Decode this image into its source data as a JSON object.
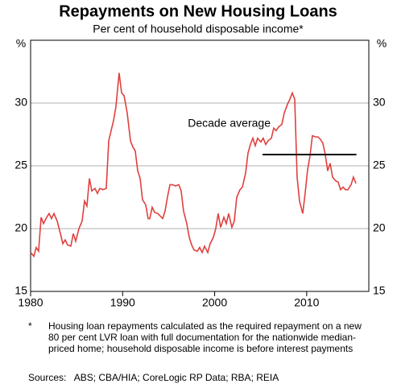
{
  "chart_data": {
    "type": "line",
    "title": "Repayments on New Housing Loans",
    "subtitle": "Per cent of household disposable income*",
    "ylabel": "%",
    "y2label": "%",
    "xlim": [
      1980,
      2016.75
    ],
    "xticks": [
      1980,
      1990,
      2000,
      2010
    ],
    "ylim": [
      15,
      35
    ],
    "yticks": [
      15,
      20,
      25,
      30
    ],
    "y2lim": [
      15,
      35
    ],
    "y2ticks": [
      15,
      20,
      25,
      30
    ],
    "grid": true,
    "series": [
      {
        "name": "Repayments",
        "color": "#e0403f",
        "x": [
          1980.0,
          1980.35,
          1980.61,
          1980.87,
          1981.14,
          1981.4,
          1981.75,
          1982.01,
          1982.27,
          1982.54,
          1982.89,
          1983.24,
          1983.5,
          1983.76,
          1984.02,
          1984.37,
          1984.64,
          1984.9,
          1985.25,
          1985.6,
          1985.86,
          1986.12,
          1986.39,
          1986.65,
          1987.0,
          1987.26,
          1987.52,
          1987.87,
          1988.22,
          1988.49,
          1988.75,
          1989.01,
          1989.27,
          1989.62,
          1989.89,
          1990.15,
          1990.5,
          1990.85,
          1991.11,
          1991.37,
          1991.64,
          1991.9,
          1992.16,
          1992.51,
          1992.77,
          1992.95,
          1993.21,
          1993.47,
          1993.82,
          1994.09,
          1994.35,
          1994.61,
          1994.87,
          1995.14,
          1995.4,
          1995.75,
          1996.1,
          1996.36,
          1996.62,
          1996.97,
          1997.24,
          1997.5,
          1997.76,
          1998.11,
          1998.37,
          1998.64,
          1998.9,
          1999.25,
          1999.51,
          1999.86,
          2000.12,
          2000.38,
          2000.65,
          2001.0,
          2001.26,
          2001.52,
          2001.87,
          2002.13,
          2002.4,
          2002.75,
          2003.01,
          2003.36,
          2003.62,
          2003.88,
          2004.15,
          2004.41,
          2004.67,
          2005.02,
          2005.28,
          2005.55,
          2005.81,
          2006.16,
          2006.42,
          2006.68,
          2006.95,
          2007.3,
          2007.56,
          2007.91,
          2008.17,
          2008.44,
          2008.7,
          2008.96,
          2009.22,
          2009.57,
          2009.83,
          2010.1,
          2010.36,
          2010.62,
          2010.97,
          2011.23,
          2011.5,
          2011.76,
          2012.02,
          2012.28,
          2012.55,
          2012.81,
          2013.16,
          2013.42,
          2013.68,
          2013.95,
          2014.21,
          2014.47,
          2014.82,
          2015.08,
          2015.35
        ],
        "values": [
          18.1,
          17.8,
          18.5,
          18.2,
          20.9,
          20.4,
          20.9,
          21.2,
          20.8,
          21.2,
          20.6,
          19.6,
          18.8,
          19.1,
          18.7,
          18.6,
          19.6,
          19.0,
          20.0,
          20.6,
          22.2,
          21.8,
          24.0,
          23.0,
          23.2,
          22.8,
          23.2,
          23.1,
          23.2,
          27.0,
          27.8,
          28.6,
          29.7,
          32.4,
          30.8,
          30.6,
          29.2,
          27.0,
          26.5,
          26.2,
          24.6,
          24.0,
          22.3,
          21.9,
          20.8,
          20.8,
          21.7,
          21.3,
          21.2,
          21.0,
          20.8,
          21.4,
          22.5,
          23.5,
          23.5,
          23.4,
          23.5,
          23.0,
          21.4,
          20.4,
          19.3,
          18.7,
          18.3,
          18.2,
          18.5,
          18.1,
          18.6,
          18.1,
          18.8,
          19.3,
          20.0,
          21.2,
          20.1,
          20.9,
          20.4,
          21.2,
          20.1,
          20.6,
          22.5,
          23.1,
          23.3,
          24.4,
          26.0,
          26.7,
          27.2,
          26.6,
          27.2,
          26.9,
          27.2,
          26.7,
          27.0,
          27.2,
          28.0,
          27.8,
          28.1,
          28.3,
          29.2,
          29.9,
          30.3,
          30.8,
          30.3,
          24.1,
          22.2,
          21.2,
          22.8,
          24.7,
          25.8,
          27.4,
          27.3,
          27.3,
          27.1,
          26.8,
          25.9,
          24.6,
          25.2,
          24.1,
          23.8,
          23.7,
          23.1,
          23.3,
          23.1,
          23.1,
          23.5,
          24.1,
          23.6
        ]
      }
    ],
    "annotations": [
      {
        "label": "Decade average",
        "value": 25.9,
        "x": [
          2005.2,
          2015.4
        ],
        "color": "#000000"
      }
    ],
    "footnote": {
      "marker": "*",
      "text": "Housing loan repayments calculated as the required repayment on a new 80 per cent LVR loan with full documentation for the nationwide median-priced home; household disposable income is before interest payments"
    },
    "sources": "Sources:   ABS; CBA/HIA; CoreLogic RP Data; RBA; REIA"
  }
}
